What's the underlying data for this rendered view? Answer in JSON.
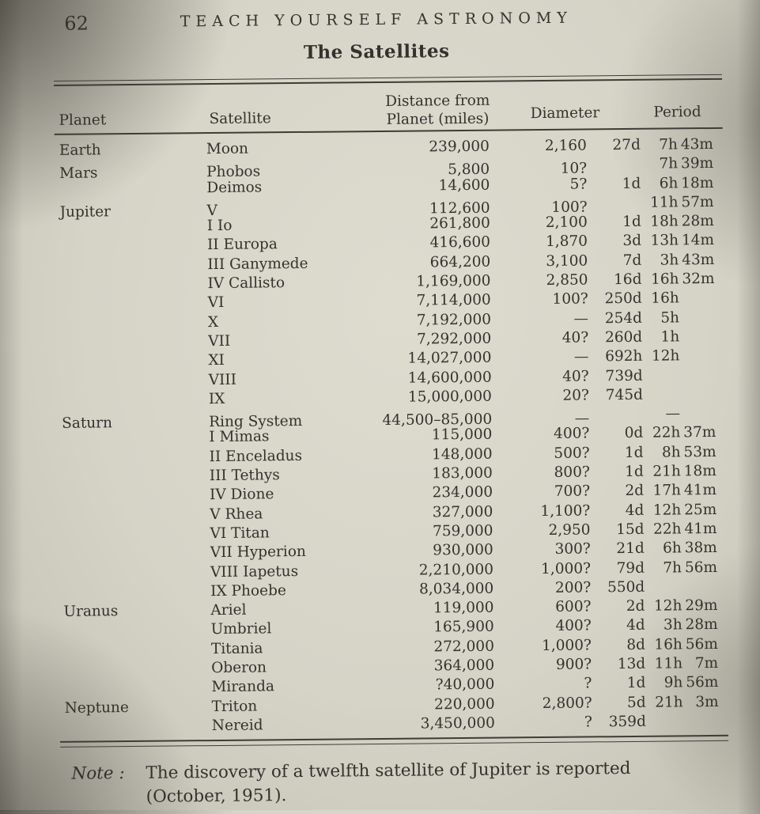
{
  "page": {
    "number": "62",
    "running_head": "TEACH YOURSELF ASTRONOMY",
    "title": "The Satellites"
  },
  "table": {
    "headers": {
      "planet": "Planet",
      "satellite": "Satellite",
      "distance_line1": "Distance from",
      "distance_line2": "Planet (miles)",
      "diameter": "Diameter",
      "period": "Period"
    },
    "rows": [
      {
        "planet": "Earth",
        "satellite": "Moon",
        "distance": "239,000",
        "diameter": "2,160",
        "period_d": "27d",
        "period_h": "7h",
        "period_m": "43m"
      },
      {
        "planet": "Mars",
        "satellite": "Phobos",
        "distance": "5,800",
        "diameter": "10?",
        "period_d": "",
        "period_h": "7h",
        "period_m": "39m"
      },
      {
        "planet": "",
        "satellite": "Deimos",
        "distance": "14,600",
        "diameter": "5?",
        "period_d": "1d",
        "period_h": "6h",
        "period_m": "18m"
      },
      {
        "planet": "Jupiter",
        "satellite": "V",
        "distance": "112,600",
        "diameter": "100?",
        "period_d": "",
        "period_h": "11h",
        "period_m": "57m"
      },
      {
        "planet": "",
        "satellite": "I Io",
        "distance": "261,800",
        "diameter": "2,100",
        "period_d": "1d",
        "period_h": "18h",
        "period_m": "28m"
      },
      {
        "planet": "",
        "satellite": "II Europa",
        "distance": "416,600",
        "diameter": "1,870",
        "period_d": "3d",
        "period_h": "13h",
        "period_m": "14m"
      },
      {
        "planet": "",
        "satellite": "III Ganymede",
        "distance": "664,200",
        "diameter": "3,100",
        "period_d": "7d",
        "period_h": "3h",
        "period_m": "43m"
      },
      {
        "planet": "",
        "satellite": "IV Callisto",
        "distance": "1,169,000",
        "diameter": "2,850",
        "period_d": "16d",
        "period_h": "16h",
        "period_m": "32m"
      },
      {
        "planet": "",
        "satellite": "VI",
        "distance": "7,114,000",
        "diameter": "100?",
        "period_d": "250d",
        "period_h": "16h",
        "period_m": ""
      },
      {
        "planet": "",
        "satellite": "X",
        "distance": "7,192,000",
        "diameter": "—",
        "period_d": "254d",
        "period_h": "5h",
        "period_m": ""
      },
      {
        "planet": "",
        "satellite": "VII",
        "distance": "7,292,000",
        "diameter": "40?",
        "period_d": "260d",
        "period_h": "1h",
        "period_m": ""
      },
      {
        "planet": "",
        "satellite": "XI",
        "distance": "14,027,000",
        "diameter": "—",
        "period_d": "692h",
        "period_h": "12h",
        "period_m": ""
      },
      {
        "planet": "",
        "satellite": "VIII",
        "distance": "14,600,000",
        "diameter": "40?",
        "period_d": "739d",
        "period_h": "",
        "period_m": ""
      },
      {
        "planet": "",
        "satellite": "IX",
        "distance": "15,000,000",
        "diameter": "20?",
        "period_d": "745d",
        "period_h": "",
        "period_m": ""
      },
      {
        "planet": "Saturn",
        "satellite": "Ring System",
        "distance": "44,500–85,000",
        "diameter": "—",
        "period_d": "",
        "period_h": "—",
        "period_m": ""
      },
      {
        "planet": "",
        "satellite": "I Mimas",
        "distance": "115,000",
        "diameter": "400?",
        "period_d": "0d",
        "period_h": "22h",
        "period_m": "37m"
      },
      {
        "planet": "",
        "satellite": "II Enceladus",
        "distance": "148,000",
        "diameter": "500?",
        "period_d": "1d",
        "period_h": "8h",
        "period_m": "53m"
      },
      {
        "planet": "",
        "satellite": "III Tethys",
        "distance": "183,000",
        "diameter": "800?",
        "period_d": "1d",
        "period_h": "21h",
        "period_m": "18m"
      },
      {
        "planet": "",
        "satellite": "IV Dione",
        "distance": "234,000",
        "diameter": "700?",
        "period_d": "2d",
        "period_h": "17h",
        "period_m": "41m"
      },
      {
        "planet": "",
        "satellite": "V Rhea",
        "distance": "327,000",
        "diameter": "1,100?",
        "period_d": "4d",
        "period_h": "12h",
        "period_m": "25m"
      },
      {
        "planet": "",
        "satellite": "VI Titan",
        "distance": "759,000",
        "diameter": "2,950",
        "period_d": "15d",
        "period_h": "22h",
        "period_m": "41m"
      },
      {
        "planet": "",
        "satellite": "VII Hyperion",
        "distance": "930,000",
        "diameter": "300?",
        "period_d": "21d",
        "period_h": "6h",
        "period_m": "38m"
      },
      {
        "planet": "",
        "satellite": "VIII Iapetus",
        "distance": "2,210,000",
        "diameter": "1,000?",
        "period_d": "79d",
        "period_h": "7h",
        "period_m": "56m"
      },
      {
        "planet": "",
        "satellite": "IX Phoebe",
        "distance": "8,034,000",
        "diameter": "200?",
        "period_d": "550d",
        "period_h": "",
        "period_m": ""
      },
      {
        "planet": "Uranus",
        "satellite": "Ariel",
        "distance": "119,000",
        "diameter": "600?",
        "period_d": "2d",
        "period_h": "12h",
        "period_m": "29m"
      },
      {
        "planet": "",
        "satellite": "Umbriel",
        "distance": "165,900",
        "diameter": "400?",
        "period_d": "4d",
        "period_h": "3h",
        "period_m": "28m"
      },
      {
        "planet": "",
        "satellite": "Titania",
        "distance": "272,000",
        "diameter": "1,000?",
        "period_d": "8d",
        "period_h": "16h",
        "period_m": "56m"
      },
      {
        "planet": "",
        "satellite": "Oberon",
        "distance": "364,000",
        "diameter": "900?",
        "period_d": "13d",
        "period_h": "11h",
        "period_m": "7m"
      },
      {
        "planet": "",
        "satellite": "Miranda",
        "distance": "?40,000",
        "diameter": "?",
        "period_d": "1d",
        "period_h": "9h",
        "period_m": "56m"
      },
      {
        "planet": "Neptune",
        "satellite": "Triton",
        "distance": "220,000",
        "diameter": "2,800?",
        "period_d": "5d",
        "period_h": "21h",
        "period_m": "3m"
      },
      {
        "planet": "",
        "satellite": "Nereid",
        "distance": "3,450,000",
        "diameter": "?",
        "period_d": "359d",
        "period_h": "",
        "period_m": ""
      }
    ]
  },
  "note": {
    "label": "Note :",
    "text": "The discovery of a twelfth satellite of Jupiter is reported (October, 1951)."
  },
  "colors": {
    "paper": "#d6d4c7",
    "ink": "#34322c",
    "rule": "#3e3c35"
  }
}
